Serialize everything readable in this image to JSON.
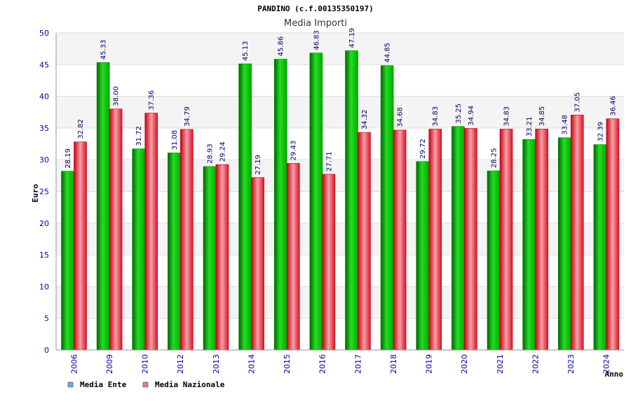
{
  "chart_data": {
    "type": "bar",
    "title": "PANDINO (c.f.00135350197)",
    "subtitle": "Media Importi",
    "xlabel": "Anno",
    "ylabel": "Euro",
    "ylim": [
      0,
      50
    ],
    "yticks": [
      0,
      5,
      10,
      15,
      20,
      25,
      30,
      35,
      40,
      45,
      50
    ],
    "grid": true,
    "legend_position": "bottom-left",
    "categories": [
      "2006",
      "2009",
      "2010",
      "2012",
      "2013",
      "2014",
      "2015",
      "2016",
      "2017",
      "2018",
      "2019",
      "2020",
      "2021",
      "2022",
      "2023",
      "2024"
    ],
    "series": [
      {
        "name": "Media Ente",
        "color": "#00bb00",
        "legend_color": "#6fa8dc",
        "values": [
          28.19,
          45.33,
          31.72,
          31.08,
          28.93,
          45.13,
          45.86,
          46.83,
          47.19,
          44.85,
          29.72,
          35.25,
          28.25,
          33.21,
          33.48,
          32.39
        ],
        "labels": [
          "28.19",
          "45.33",
          "31.72",
          "31.08",
          "28.93",
          "45.13",
          "45.86",
          "46.83",
          "47.19",
          "44.85",
          "29.72",
          "35.25",
          "28.25",
          "33.21",
          "33.48",
          "32.39"
        ]
      },
      {
        "name": "Media Nazionale",
        "color": "#ee2233",
        "legend_color": "#e07aa5",
        "values": [
          32.82,
          38.0,
          37.36,
          34.79,
          29.24,
          27.19,
          29.43,
          27.71,
          34.32,
          34.68,
          34.83,
          34.94,
          34.83,
          34.85,
          37.05,
          36.46
        ],
        "labels": [
          "32.82",
          "38.00",
          "37.36",
          "34.79",
          "29.24",
          "27.19",
          "29.43",
          "27.71",
          "34.32",
          "34.68",
          "34.83",
          "34.94",
          "34.83",
          "34.85",
          "37.05",
          "36.46"
        ]
      }
    ]
  }
}
